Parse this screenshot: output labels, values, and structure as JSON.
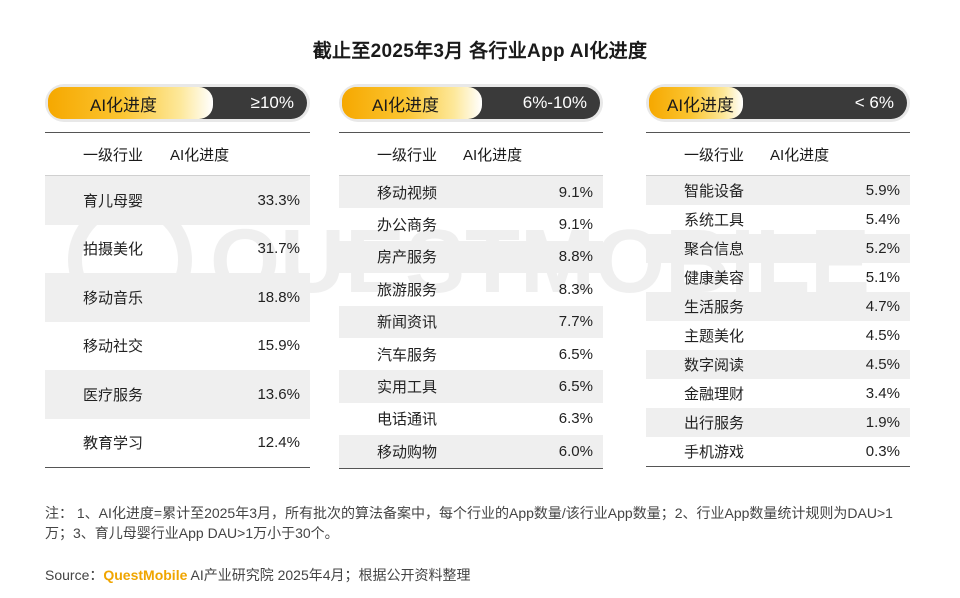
{
  "title": "截止至2025年3月 各行业App AI化进度",
  "watermark": "QUESTMOBILE",
  "colors": {
    "accent": "#f6a800",
    "dark_pill": "#3a3a3a",
    "row_shade": "#efefef"
  },
  "chart_data": {
    "type": "table",
    "columns": [
      "一级行业",
      "AI化进度"
    ],
    "groups": [
      {
        "pill_label": "AI化进度",
        "range": "≥10%",
        "rows": [
          {
            "industry": "育儿母婴",
            "value": "33.3%"
          },
          {
            "industry": "拍摄美化",
            "value": "31.7%"
          },
          {
            "industry": "移动音乐",
            "value": "18.8%"
          },
          {
            "industry": "移动社交",
            "value": "15.9%"
          },
          {
            "industry": "医疗服务",
            "value": "13.6%"
          },
          {
            "industry": "教育学习",
            "value": "12.4%"
          }
        ]
      },
      {
        "pill_label": "AI化进度",
        "range": "6%-10%",
        "rows": [
          {
            "industry": "移动视频",
            "value": "9.1%"
          },
          {
            "industry": "办公商务",
            "value": "9.1%"
          },
          {
            "industry": "房产服务",
            "value": "8.8%"
          },
          {
            "industry": "旅游服务",
            "value": "8.3%"
          },
          {
            "industry": "新闻资讯",
            "value": "7.7%"
          },
          {
            "industry": "汽车服务",
            "value": "6.5%"
          },
          {
            "industry": "实用工具",
            "value": "6.5%"
          },
          {
            "industry": "电话通讯",
            "value": "6.3%"
          },
          {
            "industry": "移动购物",
            "value": "6.0%"
          }
        ]
      },
      {
        "pill_label": "AI化进度",
        "range": "< 6%",
        "rows": [
          {
            "industry": "智能设备",
            "value": "5.9%"
          },
          {
            "industry": "系统工具",
            "value": "5.4%"
          },
          {
            "industry": "聚合信息",
            "value": "5.2%"
          },
          {
            "industry": "健康美容",
            "value": "5.1%"
          },
          {
            "industry": "生活服务",
            "value": "4.7%"
          },
          {
            "industry": "主题美化",
            "value": "4.5%"
          },
          {
            "industry": "数字阅读",
            "value": "4.5%"
          },
          {
            "industry": "金融理财",
            "value": "3.4%"
          },
          {
            "industry": "出行服务",
            "value": "1.9%"
          },
          {
            "industry": "手机游戏",
            "value": "0.3%"
          }
        ]
      }
    ]
  },
  "note": "注： 1、AI化进度=累计至2025年3月，所有批次的算法备案中，每个行业的App数量/该行业App数量；2、行业App数量统计规则为DAU>1万；3、育儿母婴行业App DAU>1万小于30个。",
  "source": {
    "prefix": "Source：",
    "brand": "QuestMobile",
    "suffix": " AI产业研究院 2025年4月；根据公开资料整理"
  }
}
